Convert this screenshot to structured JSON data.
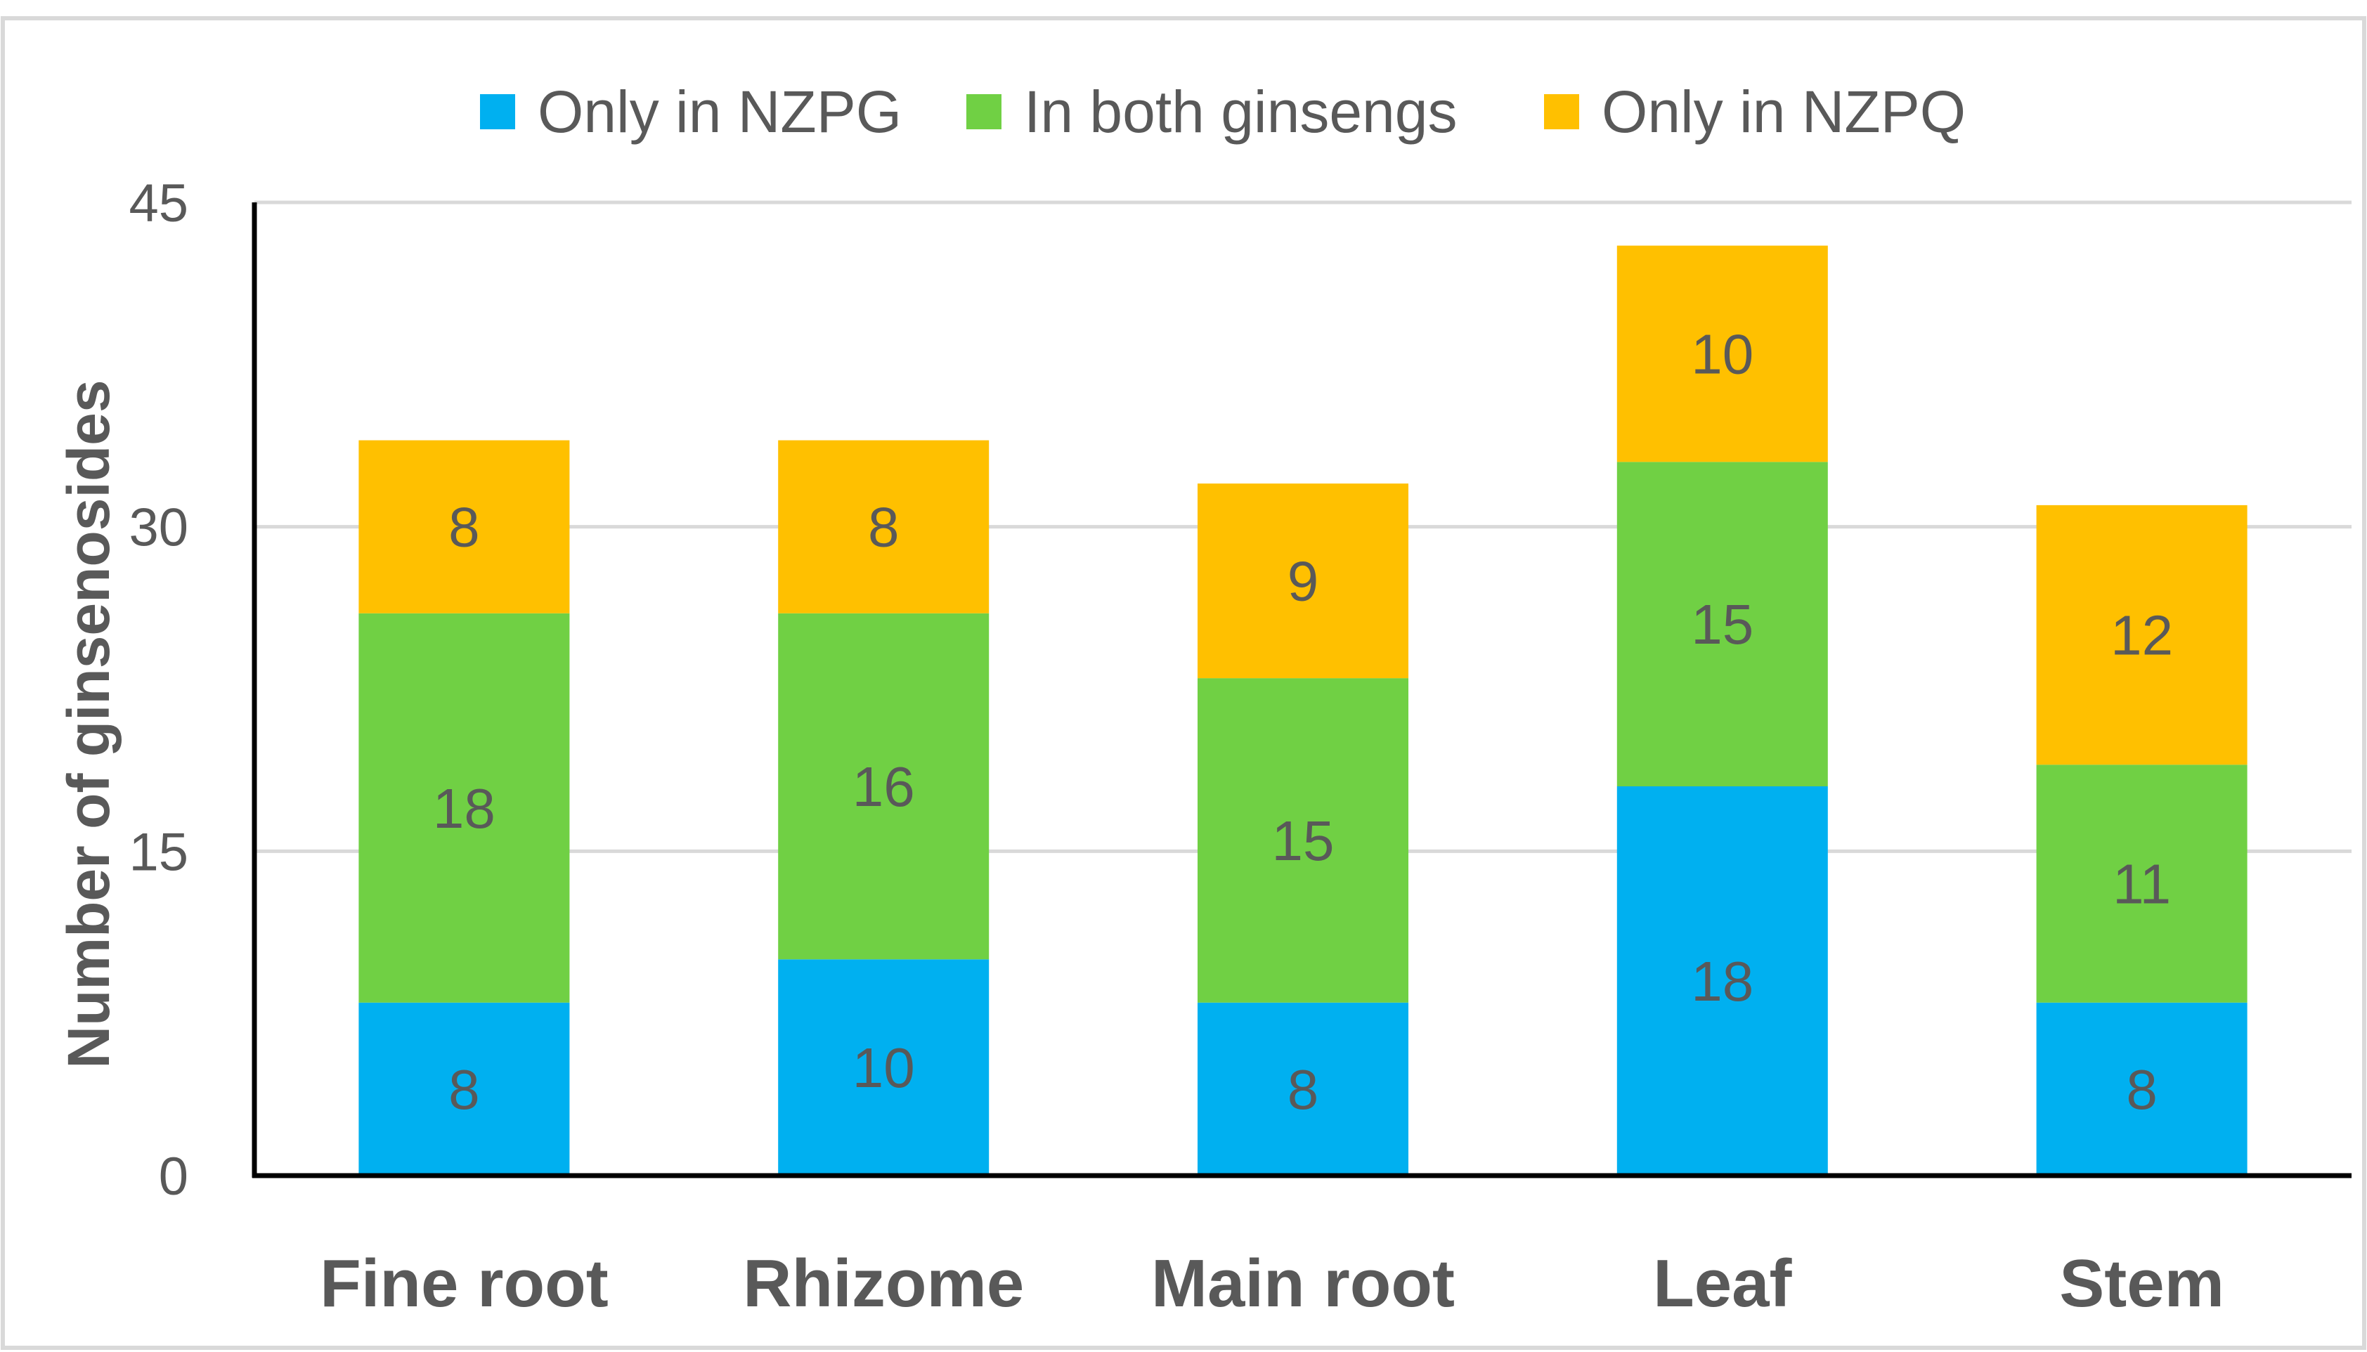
{
  "chart_data": {
    "type": "bar",
    "stacked": true,
    "title": "",
    "xlabel": "",
    "ylabel": "Number of ginsenosides",
    "ylim": [
      0,
      45
    ],
    "yticks": [
      0,
      15,
      30,
      45
    ],
    "grid": true,
    "legend_position": "top-center",
    "categories": [
      "Fine root",
      "Rhizome",
      "Main root",
      "Leaf",
      "Stem"
    ],
    "series": [
      {
        "name": "Only in NZPG",
        "color": "#00b0f0",
        "values": [
          8,
          10,
          8,
          18,
          8
        ]
      },
      {
        "name": "In both ginsengs",
        "color": "#70d044",
        "values": [
          18,
          16,
          15,
          15,
          11
        ]
      },
      {
        "name": "Only in NZPQ",
        "color": "#ffc000",
        "values": [
          8,
          8,
          9,
          10,
          12
        ]
      }
    ]
  }
}
